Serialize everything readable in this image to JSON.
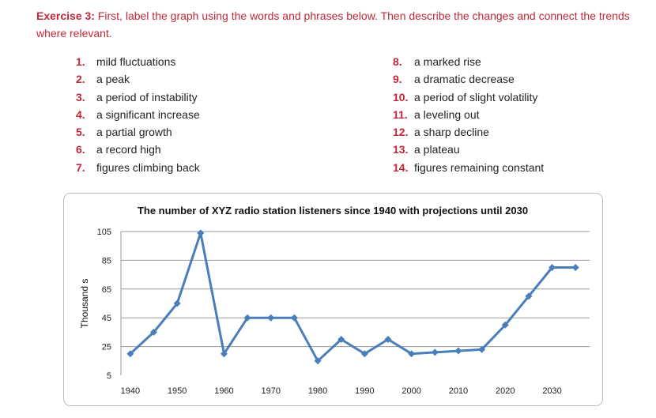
{
  "exercise": {
    "label": "Exercise 3:",
    "text": "First, label the graph using the words and phrases below. Then describe the changes and connect the trends where relevant."
  },
  "items_left": [
    {
      "num": "1.",
      "text": "mild fluctuations"
    },
    {
      "num": "2.",
      "text": "a peak"
    },
    {
      "num": "3.",
      "text": "a period of instability"
    },
    {
      "num": "4.",
      "text": "a significant increase"
    },
    {
      "num": "5.",
      "text": "a partial growth"
    },
    {
      "num": "6.",
      "text": "a record high"
    },
    {
      "num": "7.",
      "text": "figures climbing back"
    }
  ],
  "items_right": [
    {
      "num": "8.",
      "text": "a marked rise"
    },
    {
      "num": "9.",
      "text": "a dramatic decrease"
    },
    {
      "num": "10.",
      "text": "a period of slight volatility"
    },
    {
      "num": "11.",
      "text": "a leveling out"
    },
    {
      "num": "12.",
      "text": "a sharp decline"
    },
    {
      "num": "13.",
      "text": "a plateau"
    },
    {
      "num": "14.",
      "text": "figures remaining constant"
    }
  ],
  "chart_data": {
    "type": "line",
    "title": "The number of XYZ radio station listeners since 1940 with projections until 2030",
    "ylabel": "Thousand s",
    "xlabel": "",
    "ylim": [
      5,
      105
    ],
    "yticks": [
      5,
      25,
      45,
      65,
      85,
      105
    ],
    "xlim": [
      1938,
      2038
    ],
    "xticks": [
      1940,
      1950,
      1960,
      1970,
      1980,
      1990,
      2000,
      2010,
      2020,
      2030
    ],
    "grid": true,
    "series": [
      {
        "name": "listeners",
        "color": "#4a7ebb",
        "x": [
          1940,
          1945,
          1950,
          1955,
          1960,
          1965,
          1970,
          1975,
          1980,
          1985,
          1990,
          1995,
          2000,
          2005,
          2010,
          2015,
          2020,
          2025,
          2030,
          2035
        ],
        "y": [
          20,
          35,
          55,
          104,
          20,
          45,
          45,
          45,
          15,
          30,
          20,
          30,
          20,
          21,
          22,
          23,
          40,
          60,
          80,
          80
        ]
      }
    ]
  }
}
